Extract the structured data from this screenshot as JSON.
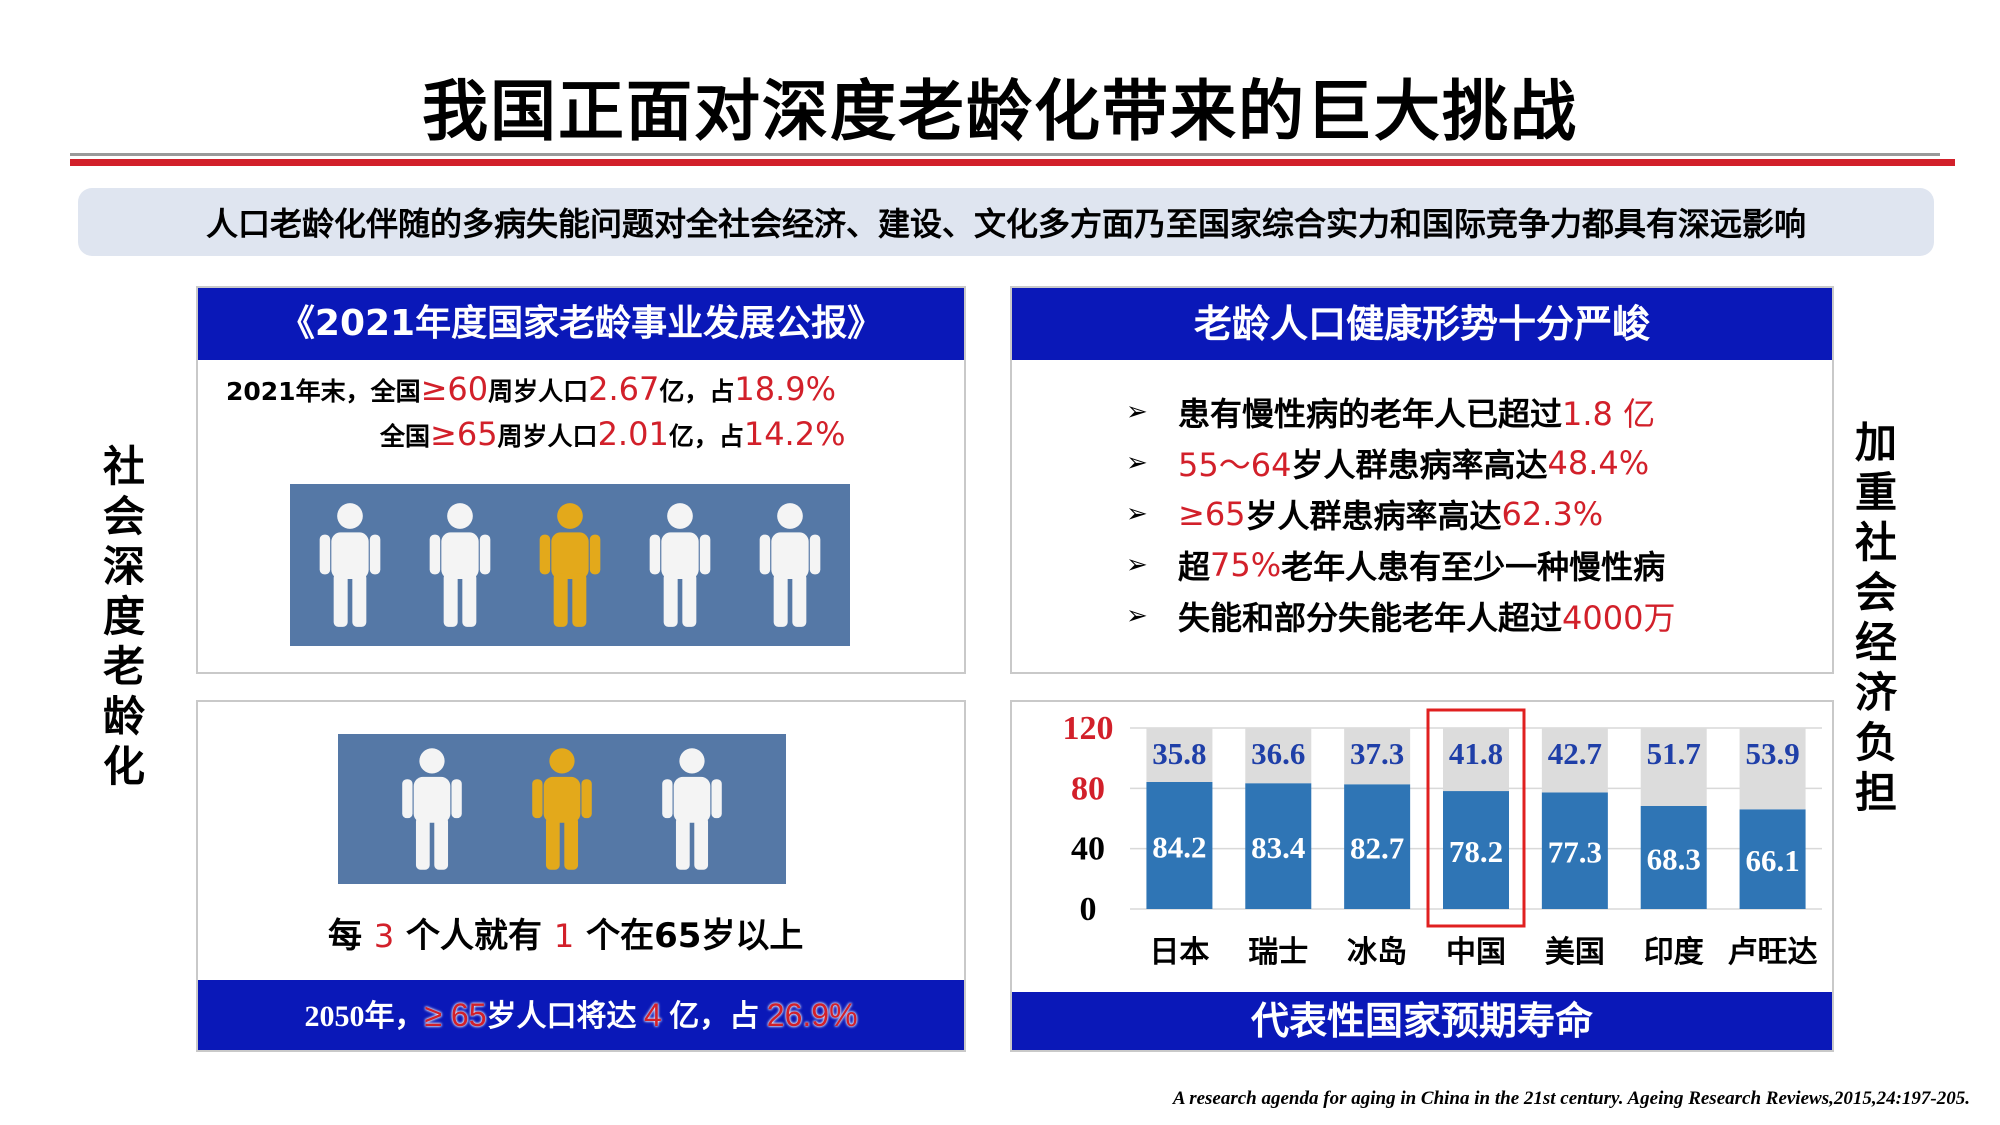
{
  "title": "我国正面对深度老龄化带来的巨大挑战",
  "banner": "人口老龄化伴随的多病失能问题对全社会经济、建设、文化多方面乃至国家综合实力和国际竞争力都具有深远影响",
  "left_vertical": [
    "社",
    "会",
    "深",
    "度",
    "老",
    "龄",
    "化"
  ],
  "right_vertical": [
    "加",
    "重",
    "社",
    "会",
    "经",
    "济",
    "负",
    "担"
  ],
  "report": {
    "title": "《2021年度国家老龄事业发展公报》",
    "line1": {
      "a": "2021年末，全国",
      "b": "≥60",
      "c": "周岁人口",
      "d": "2.67",
      "e": "亿，占",
      "f": "18.9%"
    },
    "line2": {
      "a": "全国",
      "b": "≥65",
      "c": "周岁人口",
      "d": "2.01",
      "e": "亿，占",
      "f": "14.2%"
    },
    "people_colors": [
      "white",
      "white",
      "gold",
      "white",
      "white"
    ]
  },
  "projection": {
    "people_colors": [
      "white",
      "gold",
      "white"
    ],
    "sentence": {
      "a": "每 ",
      "b": "3",
      "c": " 个人就有 ",
      "d": "1",
      "e": " 个在65岁以上"
    },
    "footer": {
      "a": "2050年，",
      "b": "≥ 65",
      "c": "岁人口将达 ",
      "d": "4",
      "e": " 亿，占 ",
      "f": "26.9%"
    }
  },
  "health": {
    "title": "老龄人口健康形势十分严峻",
    "bullet_marker": "➢",
    "bullets": [
      {
        "pre": "患有慢性病的老年人已超过",
        "red": "1.8 亿",
        "post": ""
      },
      {
        "pre": "",
        "red": "55～64",
        "post": "岁人群患病率高达",
        "red2": "48.4%"
      },
      {
        "pre": "",
        "red": "≥65",
        "post": "岁人群患病率高达",
        "red2": "62.3%"
      },
      {
        "pre": "超",
        "red": "75%",
        "post": "老年人患有至少一种慢性病"
      },
      {
        "pre": "失能和部分失能老年人超过",
        "red": "4000万",
        "post": ""
      }
    ]
  },
  "chart_data": {
    "type": "bar",
    "stacked": true,
    "title": "代表性国家预期寿命",
    "categories": [
      "日本",
      "瑞士",
      "冰岛",
      "中国",
      "美国",
      "印度",
      "卢旺达"
    ],
    "series": [
      {
        "values": [
          84.2,
          83.4,
          82.7,
          78.2,
          77.3,
          68.3,
          66.1
        ],
        "color": "#2f75b5"
      },
      {
        "values": [
          35.8,
          36.6,
          37.3,
          41.8,
          42.7,
          51.7,
          53.9
        ],
        "color": "#dcdcdc"
      }
    ],
    "ylim": [
      0,
      120
    ],
    "yticks": [
      "0",
      "40",
      "80",
      "120"
    ],
    "ytick_colors": [
      "#000000",
      "#000000",
      "#d2202a",
      "#d2202a"
    ],
    "highlight_category": "中国",
    "highlight_color": "#e02020",
    "grid": true
  },
  "citation": "A research agenda for aging in China in the 21st century. Ageing Research Reviews,2015,24:197-205."
}
